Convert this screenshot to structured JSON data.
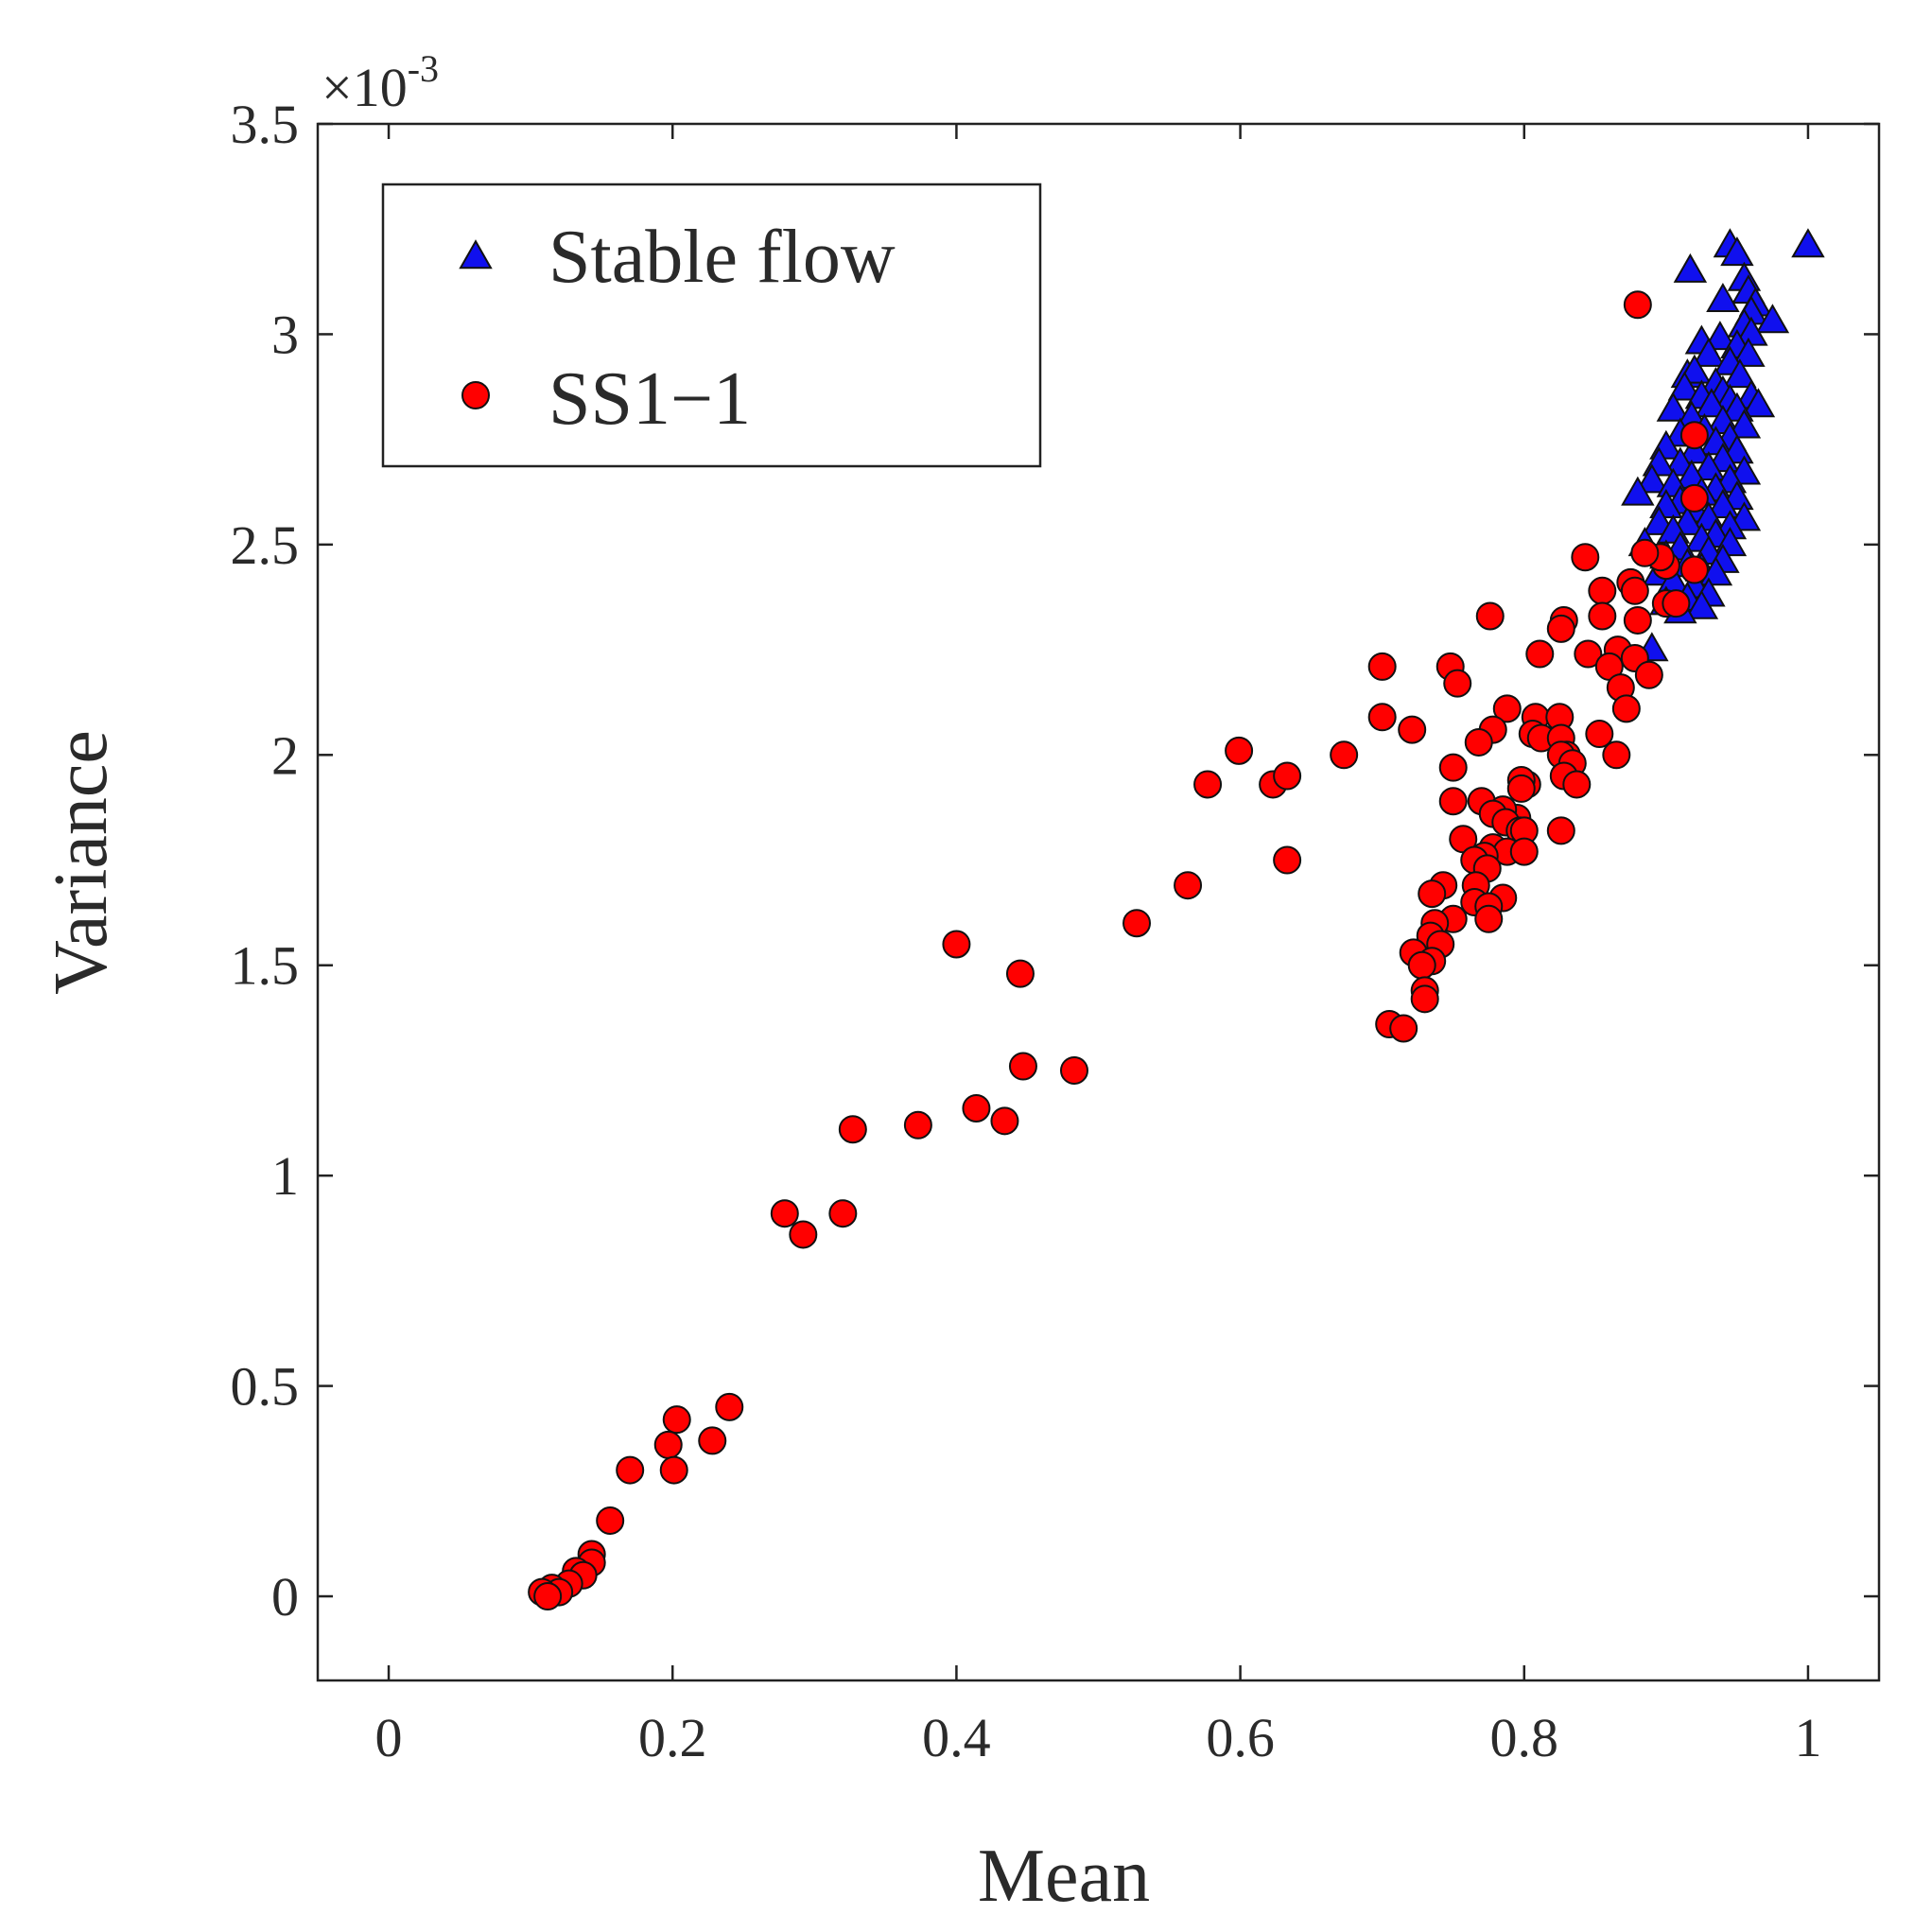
{
  "chart_data": {
    "type": "scatter",
    "title": "",
    "xlabel": "Mean",
    "ylabel": "Variance",
    "y_scale_label": "×10",
    "y_scale_exponent": "-3",
    "xlim": [
      -0.05,
      1.05
    ],
    "ylim": [
      -0.2,
      3.5
    ],
    "xticks": [
      0,
      0.2,
      0.4,
      0.6,
      0.8,
      1
    ],
    "xtick_labels": [
      "0",
      "0.2",
      "0.4",
      "0.6",
      "0.8",
      "1"
    ],
    "yticks": [
      0,
      0.5,
      1,
      1.5,
      2,
      2.5,
      3,
      3.5
    ],
    "ytick_labels": [
      "0",
      "0.5",
      "1",
      "1.5",
      "2",
      "2.5",
      "3",
      "3.5"
    ],
    "grid": false,
    "legend_position": "top-left",
    "series": [
      {
        "name": "Stable flow",
        "marker": "triangle",
        "color": "#1010ee",
        "points": [
          [
            1.0,
            3.21
          ],
          [
            0.945,
            3.21
          ],
          [
            0.95,
            3.19
          ],
          [
            0.917,
            3.15
          ],
          [
            0.955,
            3.13
          ],
          [
            0.958,
            3.1
          ],
          [
            0.94,
            3.08
          ],
          [
            0.963,
            3.07
          ],
          [
            0.96,
            3.05
          ],
          [
            0.975,
            3.03
          ],
          [
            0.955,
            3.02
          ],
          [
            0.96,
            3.0
          ],
          [
            0.938,
            2.99
          ],
          [
            0.925,
            2.98
          ],
          [
            0.95,
            2.97
          ],
          [
            0.93,
            2.95
          ],
          [
            0.958,
            2.95
          ],
          [
            0.915,
            2.9
          ],
          [
            0.945,
            2.93
          ],
          [
            0.92,
            2.91
          ],
          [
            0.935,
            2.88
          ],
          [
            0.952,
            2.9
          ],
          [
            0.913,
            2.87
          ],
          [
            0.94,
            2.86
          ],
          [
            0.925,
            2.85
          ],
          [
            0.96,
            2.85
          ],
          [
            0.945,
            2.84
          ],
          [
            0.965,
            2.83
          ],
          [
            0.932,
            2.83
          ],
          [
            0.905,
            2.82
          ],
          [
            0.95,
            2.82
          ],
          [
            0.918,
            2.8
          ],
          [
            0.94,
            2.79
          ],
          [
            0.955,
            2.78
          ],
          [
            0.927,
            2.77
          ],
          [
            0.91,
            2.76
          ],
          [
            0.945,
            2.75
          ],
          [
            0.935,
            2.74
          ],
          [
            0.9,
            2.73
          ],
          [
            0.92,
            2.72
          ],
          [
            0.95,
            2.72
          ],
          [
            0.94,
            2.7
          ],
          [
            0.91,
            2.69
          ],
          [
            0.895,
            2.69
          ],
          [
            0.93,
            2.68
          ],
          [
            0.955,
            2.67
          ],
          [
            0.918,
            2.66
          ],
          [
            0.945,
            2.65
          ],
          [
            0.89,
            2.65
          ],
          [
            0.905,
            2.64
          ],
          [
            0.935,
            2.63
          ],
          [
            0.88,
            2.62
          ],
          [
            0.925,
            2.62
          ],
          [
            0.95,
            2.61
          ],
          [
            0.91,
            2.6
          ],
          [
            0.94,
            2.59
          ],
          [
            0.9,
            2.59
          ],
          [
            0.92,
            2.58
          ],
          [
            0.93,
            2.56
          ],
          [
            0.955,
            2.56
          ],
          [
            0.895,
            2.55
          ],
          [
            0.915,
            2.55
          ],
          [
            0.945,
            2.54
          ],
          [
            0.905,
            2.53
          ],
          [
            0.935,
            2.52
          ],
          [
            0.925,
            2.51
          ],
          [
            0.885,
            2.5
          ],
          [
            0.945,
            2.5
          ],
          [
            0.91,
            2.49
          ],
          [
            0.93,
            2.48
          ],
          [
            0.9,
            2.47
          ],
          [
            0.94,
            2.46
          ],
          [
            0.915,
            2.45
          ],
          [
            0.925,
            2.44
          ],
          [
            0.895,
            2.43
          ],
          [
            0.935,
            2.43
          ],
          [
            0.905,
            2.41
          ],
          [
            0.92,
            2.4
          ],
          [
            0.93,
            2.38
          ],
          [
            0.915,
            2.37
          ],
          [
            0.9,
            2.36
          ],
          [
            0.925,
            2.35
          ],
          [
            0.91,
            2.34
          ],
          [
            0.89,
            2.25
          ]
        ]
      },
      {
        "name": "SS1−1",
        "marker": "circle",
        "color": "#ff0000",
        "points": [
          [
            0.88,
            3.07
          ],
          [
            0.92,
            2.76
          ],
          [
            0.92,
            2.61
          ],
          [
            0.92,
            2.44
          ],
          [
            0.9,
            2.45
          ],
          [
            0.896,
            2.47
          ],
          [
            0.885,
            2.48
          ],
          [
            0.875,
            2.41
          ],
          [
            0.9,
            2.36
          ],
          [
            0.907,
            2.36
          ],
          [
            0.878,
            2.39
          ],
          [
            0.843,
            2.47
          ],
          [
            0.855,
            2.39
          ],
          [
            0.855,
            2.33
          ],
          [
            0.88,
            2.32
          ],
          [
            0.828,
            2.32
          ],
          [
            0.826,
            2.3
          ],
          [
            0.845,
            2.24
          ],
          [
            0.866,
            2.25
          ],
          [
            0.86,
            2.21
          ],
          [
            0.878,
            2.23
          ],
          [
            0.888,
            2.19
          ],
          [
            0.811,
            2.24
          ],
          [
            0.868,
            2.16
          ],
          [
            0.872,
            2.11
          ],
          [
            0.853,
            2.05
          ],
          [
            0.865,
            2.0
          ],
          [
            0.776,
            2.33
          ],
          [
            0.7,
            2.21
          ],
          [
            0.748,
            2.21
          ],
          [
            0.753,
            2.17
          ],
          [
            0.7,
            2.09
          ],
          [
            0.721,
            2.06
          ],
          [
            0.673,
            2.0
          ],
          [
            0.599,
            2.01
          ],
          [
            0.577,
            1.93
          ],
          [
            0.623,
            1.93
          ],
          [
            0.633,
            1.95
          ],
          [
            0.633,
            1.75
          ],
          [
            0.788,
            2.11
          ],
          [
            0.808,
            2.09
          ],
          [
            0.825,
            2.09
          ],
          [
            0.778,
            2.06
          ],
          [
            0.806,
            2.05
          ],
          [
            0.812,
            2.04
          ],
          [
            0.826,
            2.04
          ],
          [
            0.768,
            2.03
          ],
          [
            0.83,
            2.0
          ],
          [
            0.826,
            2.0
          ],
          [
            0.834,
            1.98
          ],
          [
            0.75,
            1.97
          ],
          [
            0.828,
            1.95
          ],
          [
            0.837,
            1.93
          ],
          [
            0.802,
            1.93
          ],
          [
            0.798,
            1.94
          ],
          [
            0.798,
            1.92
          ],
          [
            0.75,
            1.89
          ],
          [
            0.77,
            1.89
          ],
          [
            0.795,
            1.85
          ],
          [
            0.785,
            1.87
          ],
          [
            0.778,
            1.86
          ],
          [
            0.787,
            1.84
          ],
          [
            0.797,
            1.82
          ],
          [
            0.8,
            1.82
          ],
          [
            0.826,
            1.82
          ],
          [
            0.757,
            1.8
          ],
          [
            0.778,
            1.78
          ],
          [
            0.788,
            1.77
          ],
          [
            0.8,
            1.77
          ],
          [
            0.772,
            1.76
          ],
          [
            0.765,
            1.75
          ],
          [
            0.774,
            1.73
          ],
          [
            0.743,
            1.69
          ],
          [
            0.766,
            1.69
          ],
          [
            0.735,
            1.67
          ],
          [
            0.785,
            1.66
          ],
          [
            0.765,
            1.65
          ],
          [
            0.775,
            1.64
          ],
          [
            0.75,
            1.61
          ],
          [
            0.775,
            1.61
          ],
          [
            0.737,
            1.6
          ],
          [
            0.734,
            1.57
          ],
          [
            0.741,
            1.55
          ],
          [
            0.722,
            1.53
          ],
          [
            0.735,
            1.51
          ],
          [
            0.728,
            1.5
          ],
          [
            0.73,
            1.44
          ],
          [
            0.73,
            1.42
          ],
          [
            0.705,
            1.36
          ],
          [
            0.715,
            1.35
          ],
          [
            0.563,
            1.69
          ],
          [
            0.527,
            1.6
          ],
          [
            0.4,
            1.55
          ],
          [
            0.445,
            1.48
          ],
          [
            0.447,
            1.26
          ],
          [
            0.483,
            1.25
          ],
          [
            0.414,
            1.16
          ],
          [
            0.434,
            1.13
          ],
          [
            0.327,
            1.11
          ],
          [
            0.373,
            1.12
          ],
          [
            0.279,
            0.91
          ],
          [
            0.32,
            0.91
          ],
          [
            0.292,
            0.86
          ],
          [
            0.24,
            0.45
          ],
          [
            0.203,
            0.42
          ],
          [
            0.228,
            0.37
          ],
          [
            0.197,
            0.36
          ],
          [
            0.17,
            0.3
          ],
          [
            0.201,
            0.3
          ],
          [
            0.156,
            0.18
          ],
          [
            0.143,
            0.1
          ],
          [
            0.143,
            0.08
          ],
          [
            0.132,
            0.06
          ],
          [
            0.137,
            0.05
          ],
          [
            0.127,
            0.03
          ],
          [
            0.115,
            0.02
          ],
          [
            0.12,
            0.01
          ],
          [
            0.108,
            0.01
          ],
          [
            0.112,
            0.0
          ]
        ]
      }
    ]
  }
}
